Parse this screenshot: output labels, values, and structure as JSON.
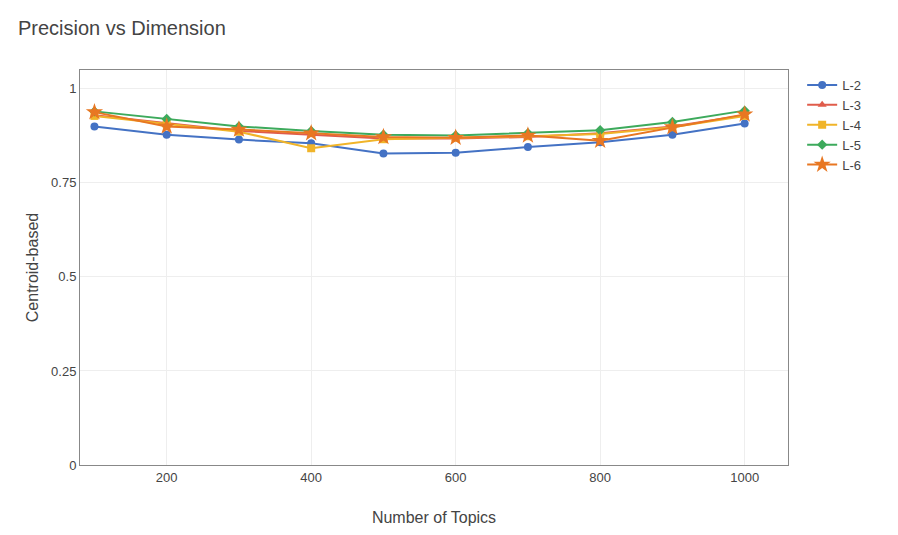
{
  "chart_data": {
    "type": "line",
    "title": "Precision vs Dimension",
    "xlabel": "Number of Topics",
    "ylabel": "Centroid-based",
    "x": [
      100,
      200,
      300,
      400,
      500,
      600,
      700,
      800,
      900,
      1000
    ],
    "series": [
      {
        "name": "L-2",
        "color": "#4472C4",
        "marker": "circle",
        "values": [
          0.9,
          0.878,
          0.865,
          0.855,
          0.828,
          0.83,
          0.845,
          0.858,
          0.878,
          0.908
        ]
      },
      {
        "name": "L-3",
        "color": "#E05C4B",
        "marker": "triangle-up",
        "values": [
          0.93,
          0.91,
          0.888,
          0.878,
          0.868,
          0.868,
          0.872,
          0.882,
          0.9,
          0.93
        ]
      },
      {
        "name": "L-4",
        "color": "#F0B429",
        "marker": "square",
        "values": [
          0.928,
          0.906,
          0.886,
          0.842,
          0.866,
          0.87,
          0.874,
          0.88,
          0.898,
          0.928
        ]
      },
      {
        "name": "L-5",
        "color": "#3DAA5C",
        "marker": "diamond",
        "values": [
          0.94,
          0.92,
          0.9,
          0.888,
          0.878,
          0.876,
          0.882,
          0.89,
          0.912,
          0.942
        ]
      },
      {
        "name": "L-6",
        "color": "#E87722",
        "marker": "star",
        "values": [
          0.938,
          0.9,
          0.892,
          0.882,
          0.872,
          0.87,
          0.876,
          0.862,
          0.898,
          0.932
        ]
      }
    ],
    "xlim": [
      80,
      1060
    ],
    "xticks": [
      200,
      400,
      600,
      800,
      1000
    ],
    "ylim": [
      0,
      1.05
    ],
    "yticks": [
      0,
      0.25,
      0.5,
      0.75,
      1
    ],
    "grid": true,
    "legend": "right"
  }
}
